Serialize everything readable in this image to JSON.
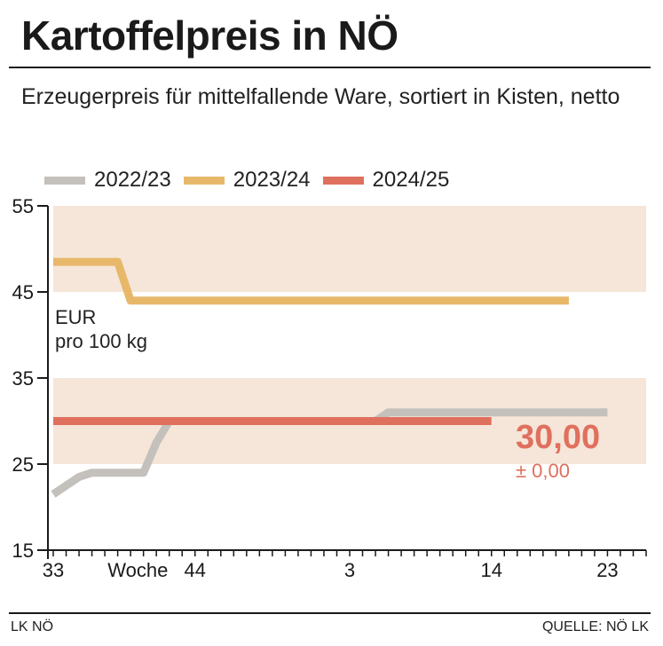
{
  "header": {
    "title": "Kartoffelpreis in NÖ",
    "subtitle": "Erzeugerpreis für mittelfallende Ware, sortiert in Kisten, netto"
  },
  "unit_label_line1": "EUR",
  "unit_label_line2": "pro 100 kg",
  "current": {
    "value": "30,00",
    "change": "± 0,00"
  },
  "footer": {
    "left": "LK NÖ",
    "right": "QUELLE: NÖ LK"
  },
  "chart_data": {
    "type": "line",
    "title": "Kartoffelpreis in NÖ",
    "subtitle": "Erzeugerpreis für mittelfallende Ware, sortiert in Kisten, netto",
    "xlabel": "Woche",
    "ylabel": "EUR pro 100 kg",
    "ylim": [
      15,
      55
    ],
    "yticks": [
      15,
      25,
      35,
      45,
      55
    ],
    "xlim": [
      0,
      46
    ],
    "xticks": [
      {
        "x": 0,
        "label": "33"
      },
      {
        "x": 11,
        "label": "44"
      },
      {
        "x": 23,
        "label": "3"
      },
      {
        "x": 34,
        "label": "14"
      },
      {
        "x": 43,
        "label": "23"
      }
    ],
    "x_axis_word": {
      "x": 4.5,
      "label": "Woche"
    },
    "bands": [
      [
        25,
        35
      ],
      [
        45,
        55
      ]
    ],
    "legend_position": "top-left",
    "series": [
      {
        "name": "2022/23",
        "color": "#c4c0bb",
        "points": [
          [
            0,
            21.5
          ],
          [
            2,
            23.5
          ],
          [
            3,
            24
          ],
          [
            7,
            24
          ],
          [
            8,
            27.5
          ],
          [
            9,
            30
          ],
          [
            25,
            30
          ],
          [
            26,
            31
          ],
          [
            43,
            31
          ]
        ]
      },
      {
        "name": "2023/24",
        "color": "#e8b86a",
        "points": [
          [
            0,
            48.5
          ],
          [
            5,
            48.5
          ],
          [
            6,
            44
          ],
          [
            40,
            44
          ]
        ]
      },
      {
        "name": "2024/25",
        "color": "#e0705e",
        "points": [
          [
            0,
            30
          ],
          [
            34,
            30
          ]
        ]
      }
    ]
  }
}
